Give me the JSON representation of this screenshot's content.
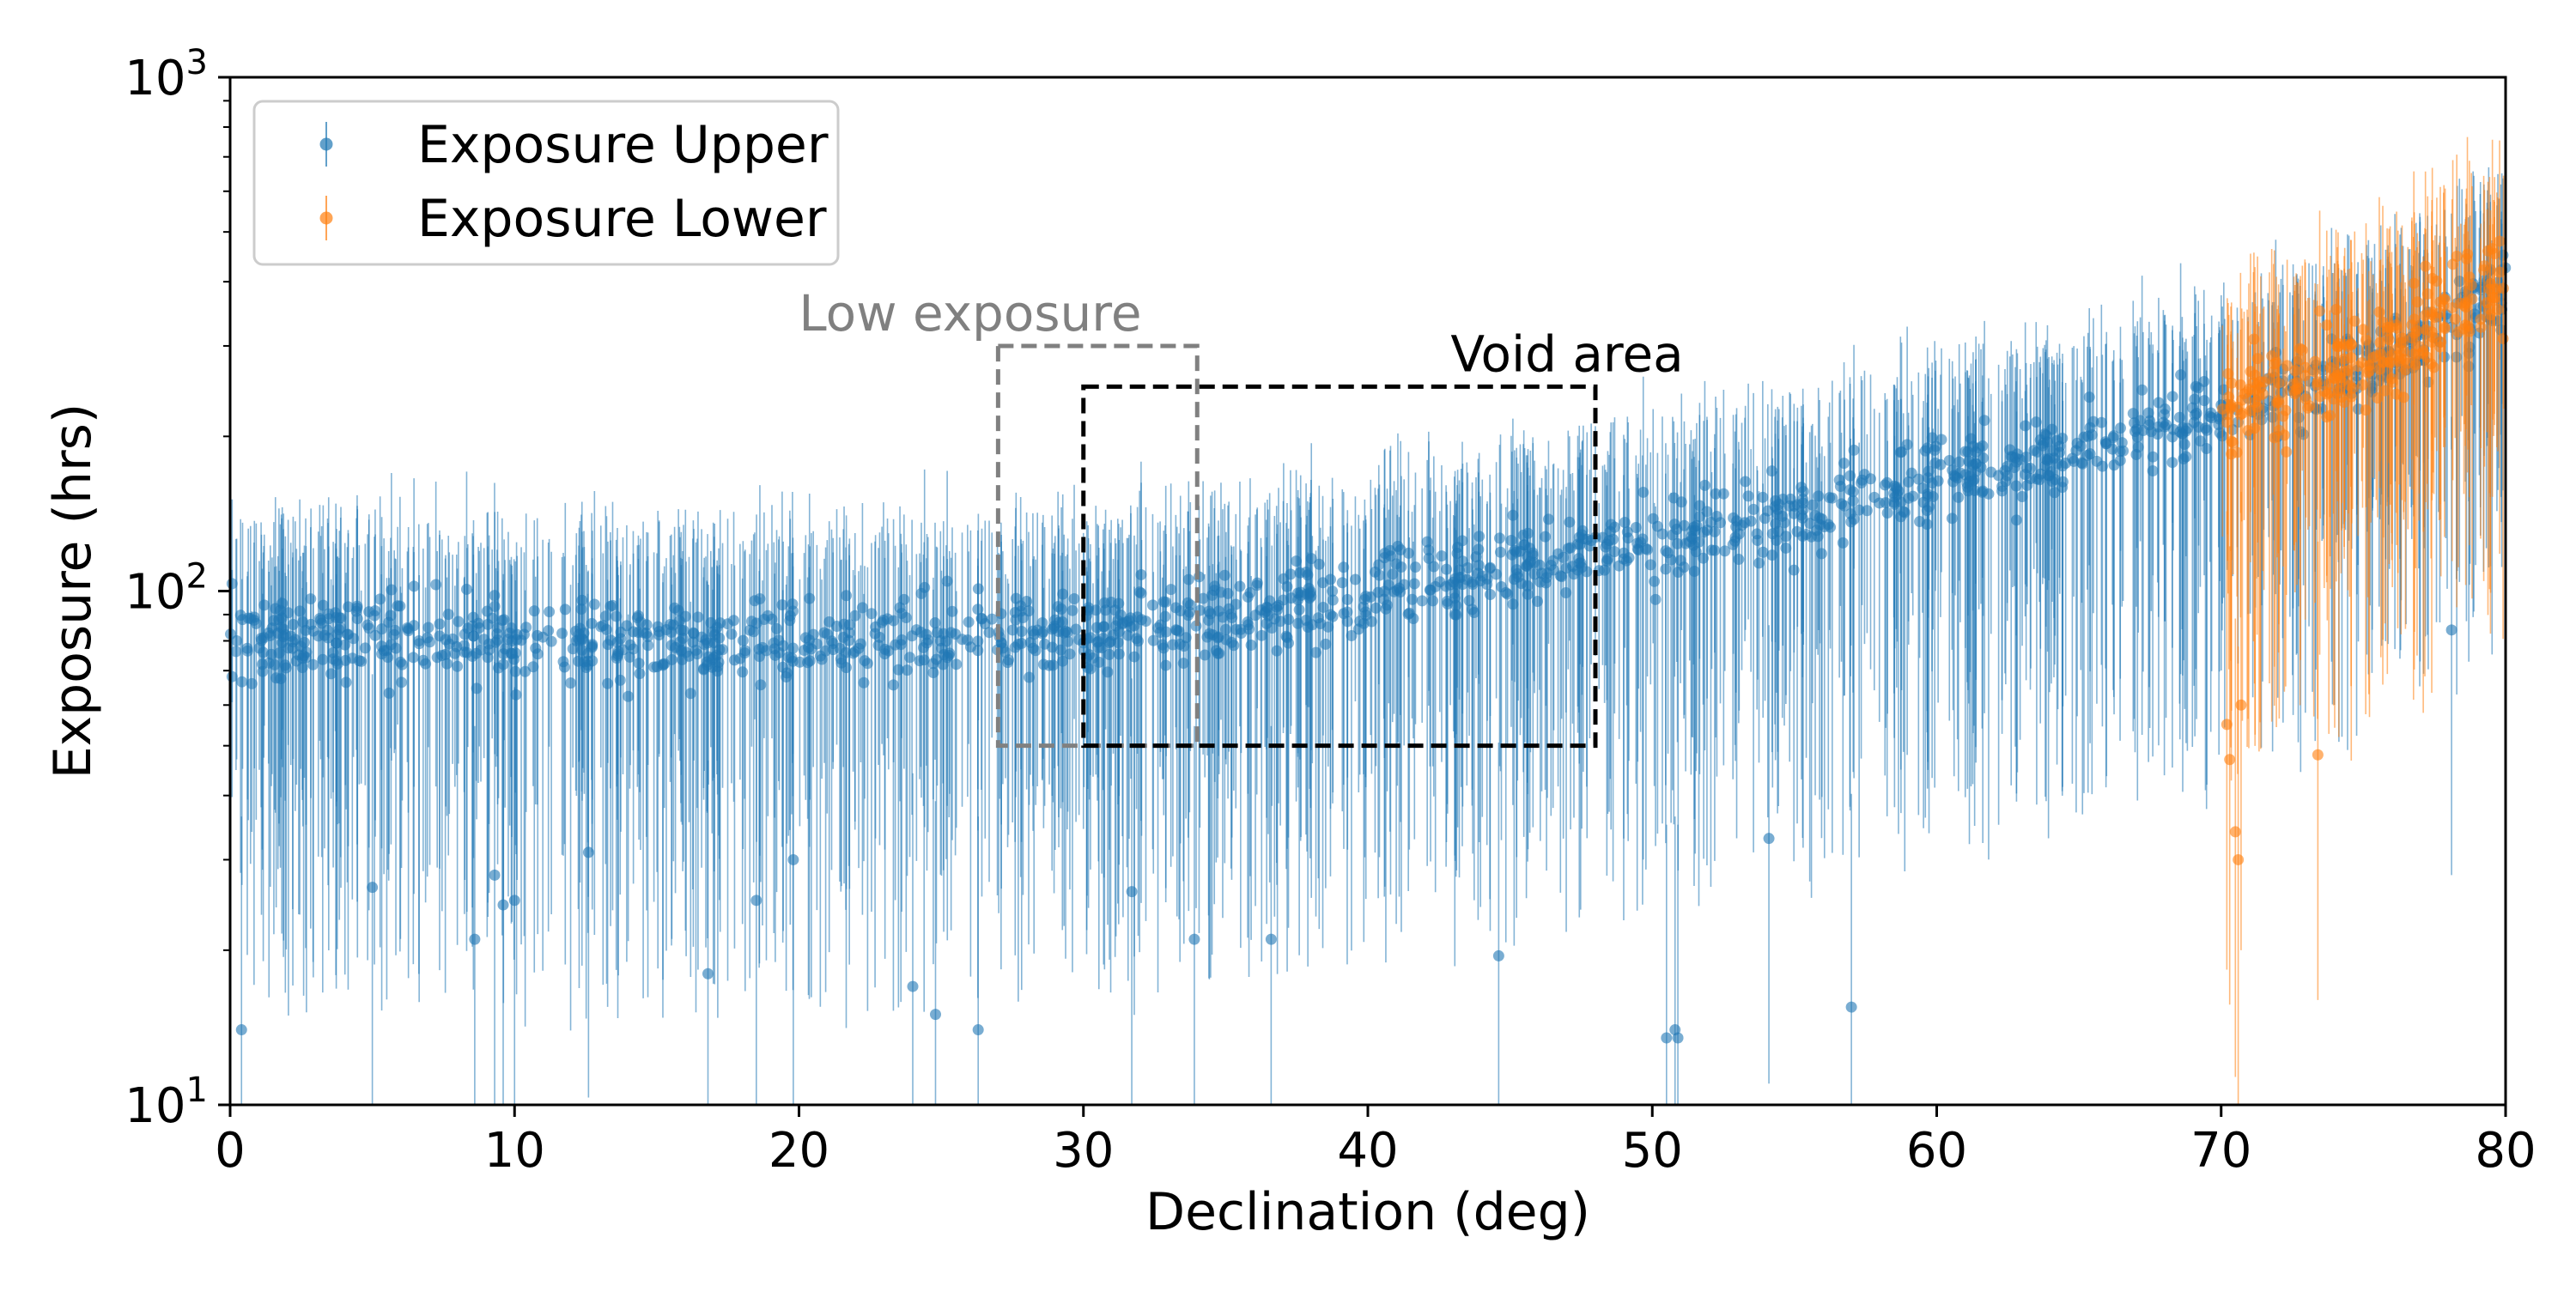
{
  "chart_data": {
    "type": "scatter",
    "subtype": "errorbar",
    "title": "",
    "xlabel": "Declination (deg)",
    "ylabel": "Exposure (hrs)",
    "xlim": [
      0,
      80
    ],
    "ylim": [
      10,
      1000
    ],
    "yscale": "log",
    "x_ticks": [
      0,
      10,
      20,
      30,
      40,
      50,
      60,
      70,
      80
    ],
    "x_tick_labels": [
      "0",
      "10",
      "20",
      "30",
      "40",
      "50",
      "60",
      "70",
      "80"
    ],
    "y_ticks": [
      10,
      100,
      1000
    ],
    "y_tick_labels": [
      {
        "base": "10",
        "exp": "1"
      },
      {
        "base": "10",
        "exp": "2"
      },
      {
        "base": "10",
        "exp": "3"
      }
    ],
    "legend": {
      "placement": "top-left",
      "entries": [
        {
          "label": "Exposure Upper",
          "color": "#1f77b4"
        },
        {
          "label": "Exposure Lower",
          "color": "#ff7f0e"
        }
      ]
    },
    "series": [
      {
        "name": "Exposure Upper",
        "color": "#1f77b4",
        "x_range": [
          0,
          80
        ],
        "trend": [
          {
            "x": 0,
            "y": 80
          },
          {
            "x": 10,
            "y": 80
          },
          {
            "x": 20,
            "y": 80
          },
          {
            "x": 30,
            "y": 82
          },
          {
            "x": 40,
            "y": 98
          },
          {
            "x": 50,
            "y": 122
          },
          {
            "x": 60,
            "y": 162
          },
          {
            "x": 70,
            "y": 222
          },
          {
            "x": 75,
            "y": 270
          },
          {
            "x": 80,
            "y": 380
          }
        ],
        "outliers": [
          {
            "x": 0.4,
            "y": 14
          },
          {
            "x": 5.0,
            "y": 26.5
          },
          {
            "x": 8.6,
            "y": 21
          },
          {
            "x": 9.3,
            "y": 28
          },
          {
            "x": 9.6,
            "y": 24.5
          },
          {
            "x": 10.0,
            "y": 25
          },
          {
            "x": 12.6,
            "y": 31
          },
          {
            "x": 16.8,
            "y": 18
          },
          {
            "x": 18.5,
            "y": 25
          },
          {
            "x": 19.8,
            "y": 30
          },
          {
            "x": 24.0,
            "y": 17
          },
          {
            "x": 24.8,
            "y": 15
          },
          {
            "x": 26.3,
            "y": 14
          },
          {
            "x": 31.7,
            "y": 26
          },
          {
            "x": 33.9,
            "y": 21
          },
          {
            "x": 36.6,
            "y": 21
          },
          {
            "x": 44.6,
            "y": 19.5
          },
          {
            "x": 50.5,
            "y": 13.5
          },
          {
            "x": 50.8,
            "y": 14
          },
          {
            "x": 50.9,
            "y": 13.5
          },
          {
            "x": 54.1,
            "y": 33
          },
          {
            "x": 57.0,
            "y": 15.5
          },
          {
            "x": 78.1,
            "y": 84
          }
        ]
      },
      {
        "name": "Exposure Lower",
        "color": "#ff7f0e",
        "x_range": [
          70,
          80
        ],
        "trend": [
          {
            "x": 70,
            "y": 220
          },
          {
            "x": 74,
            "y": 270
          },
          {
            "x": 77,
            "y": 320
          },
          {
            "x": 80,
            "y": 420
          }
        ],
        "outliers": [
          {
            "x": 70.2,
            "y": 55
          },
          {
            "x": 70.3,
            "y": 47
          },
          {
            "x": 70.5,
            "y": 34
          },
          {
            "x": 70.6,
            "y": 30
          },
          {
            "x": 70.7,
            "y": 60
          },
          {
            "x": 73.4,
            "y": 48
          }
        ]
      }
    ],
    "annotations": [
      {
        "label": "Low exposure",
        "x0": 27,
        "x1": 34,
        "y0": 50,
        "y1": 300,
        "color": "#808080",
        "style": "dashed"
      },
      {
        "label": "Void area",
        "x0": 30,
        "x1": 48,
        "y0": 50,
        "y1": 250,
        "color": "#000000",
        "style": "dashed"
      }
    ]
  }
}
